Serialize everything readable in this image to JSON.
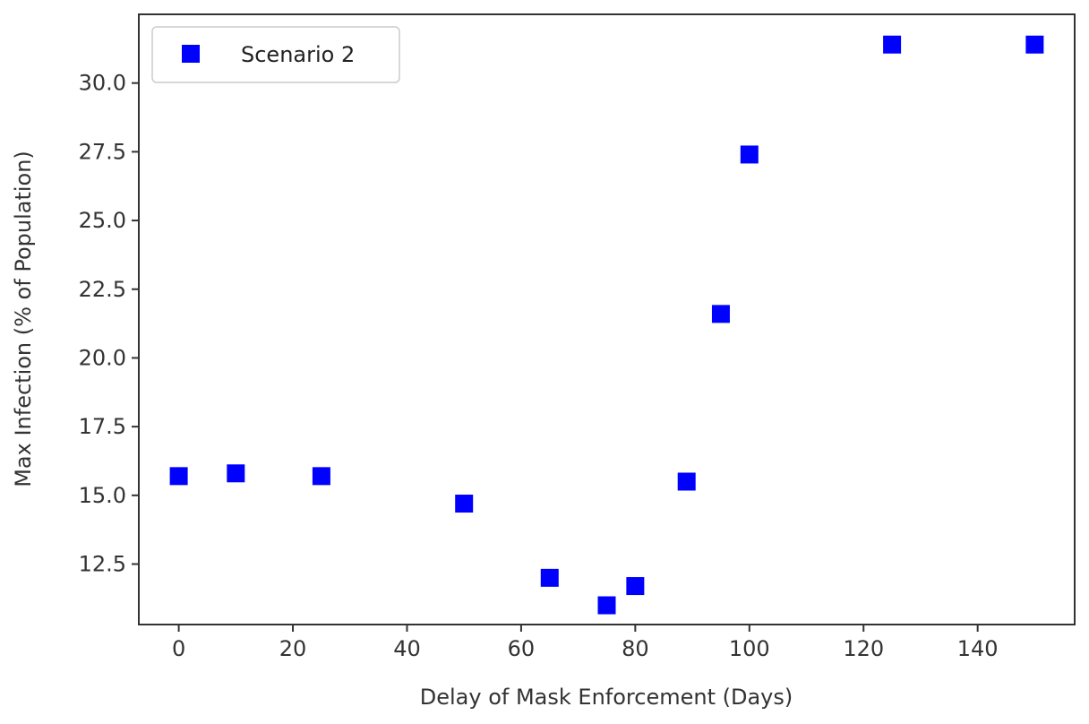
{
  "chart_data": {
    "type": "scatter",
    "title": "",
    "xlabel": "Delay of Mask Enforcement (Days)",
    "ylabel": "Max Infection (% of Population)",
    "xlim": [
      -7,
      157
    ],
    "ylim": [
      10.3,
      32.5
    ],
    "xticks": [
      0,
      20,
      40,
      60,
      80,
      100,
      120,
      140
    ],
    "yticks": [
      12.5,
      15.0,
      17.5,
      20.0,
      22.5,
      25.0,
      27.5,
      30.0
    ],
    "xtick_labels": [
      "0",
      "20",
      "40",
      "60",
      "80",
      "100",
      "120",
      "140"
    ],
    "ytick_labels": [
      "12.5",
      "15.0",
      "17.5",
      "20.0",
      "22.5",
      "25.0",
      "27.5",
      "30.0"
    ],
    "grid": false,
    "legend_position": "top-left",
    "marker": "square",
    "series": [
      {
        "name": "Scenario 2",
        "color": "#0000ff",
        "x": [
          0,
          10,
          25,
          50,
          65,
          75,
          80,
          89,
          95,
          100,
          125,
          150
        ],
        "y": [
          15.7,
          15.8,
          15.7,
          14.7,
          12.0,
          11.0,
          11.7,
          15.5,
          21.6,
          27.4,
          31.4,
          31.4
        ]
      }
    ]
  }
}
